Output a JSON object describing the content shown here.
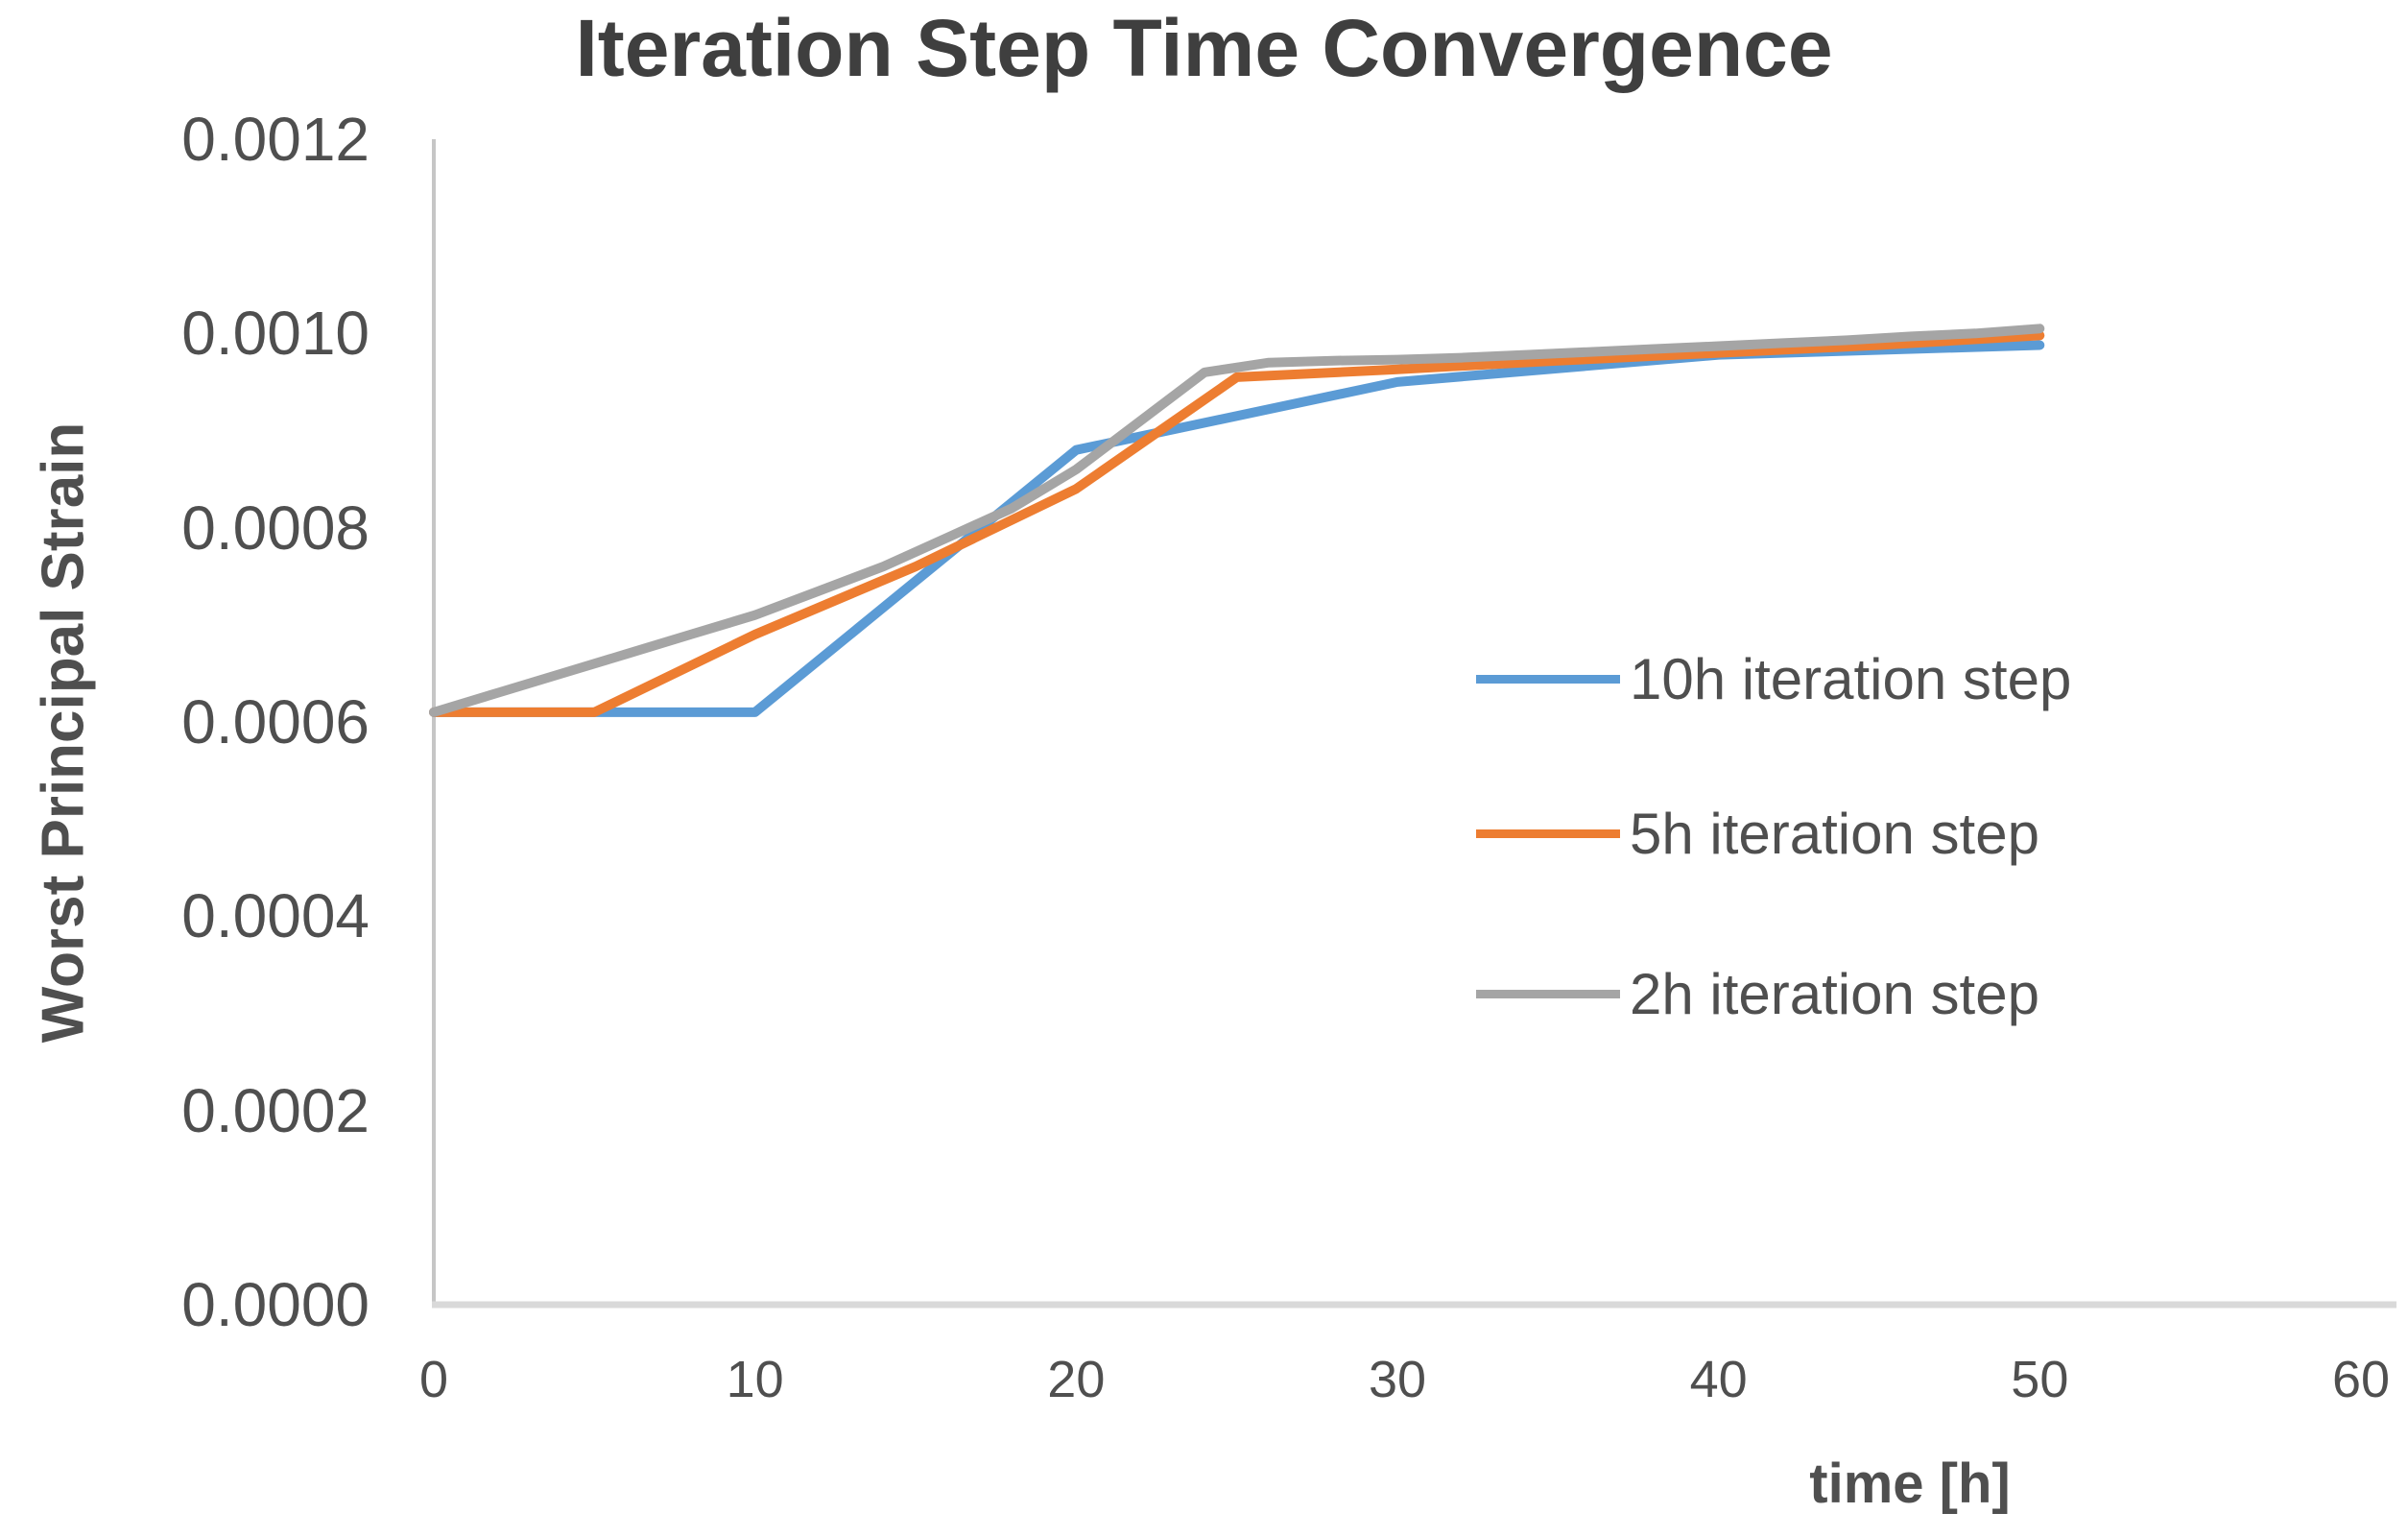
{
  "chart_data": {
    "type": "line",
    "title": "Iteration Step Time Convergence",
    "xlabel": "time [h]",
    "ylabel": "Worst Principal Strain",
    "xlim": [
      0,
      60
    ],
    "ylim": [
      0.0,
      0.0012
    ],
    "grid": false,
    "legend_position": "right-middle",
    "x_ticks": [
      {
        "label": "0",
        "value": 0
      },
      {
        "label": "10",
        "value": 10
      },
      {
        "label": "20",
        "value": 20
      },
      {
        "label": "30",
        "value": 30
      },
      {
        "label": "40",
        "value": 40
      },
      {
        "label": "50",
        "value": 50
      },
      {
        "label": "60",
        "value": 60
      }
    ],
    "y_ticks": [
      {
        "label": "0.0000",
        "value": 0.0
      },
      {
        "label": "0.0002",
        "value": 0.0002
      },
      {
        "label": "0.0004",
        "value": 0.0004
      },
      {
        "label": "0.0006",
        "value": 0.0006
      },
      {
        "label": "0.0008",
        "value": 0.0008
      },
      {
        "label": "0.0010",
        "value": 0.001
      },
      {
        "label": "0.0012",
        "value": 0.0012
      }
    ],
    "series": [
      {
        "name": "10h iteration step",
        "color": "#5B9BD5",
        "x": [
          0,
          10,
          20,
          30,
          40,
          50
        ],
        "y": [
          0.00061,
          0.00061,
          0.00088,
          0.00095,
          0.000978,
          0.000988
        ]
      },
      {
        "name": "5h iteration step",
        "color": "#ED7D31",
        "x": [
          0,
          5,
          10,
          15,
          20,
          25,
          30,
          35,
          40,
          45,
          50
        ],
        "y": [
          0.00061,
          0.00061,
          0.00069,
          0.00076,
          0.00084,
          0.000955,
          0.000963,
          0.000972,
          0.00098,
          0.000988,
          0.000998
        ]
      },
      {
        "name": "2h iteration step",
        "color": "#A5A5A5",
        "x": [
          0,
          2,
          4,
          6,
          8,
          10,
          12,
          14,
          16,
          18,
          20,
          22,
          24,
          26,
          28,
          30,
          32,
          34,
          36,
          38,
          40,
          42,
          44,
          46,
          48,
          50
        ],
        "y": [
          0.00061,
          0.00063,
          0.00065,
          0.00067,
          0.00069,
          0.00071,
          0.000735,
          0.00076,
          0.00079,
          0.00082,
          0.00086,
          0.00091,
          0.00096,
          0.00097,
          0.000972,
          0.000973,
          0.000975,
          0.000978,
          0.000981,
          0.000984,
          0.000987,
          0.00099,
          0.000993,
          0.000997,
          0.001,
          0.001005
        ]
      }
    ]
  },
  "colors": {
    "title_text": "#3F3F3F",
    "axis_text": "#4F4F4F",
    "y_axis_line": "#C6C6C6",
    "x_axis_line": "#D9D9D9",
    "background": "#FFFFFF",
    "series_blue": "#5B9BD5",
    "series_orange": "#ED7D31",
    "series_gray": "#A5A5A5"
  }
}
